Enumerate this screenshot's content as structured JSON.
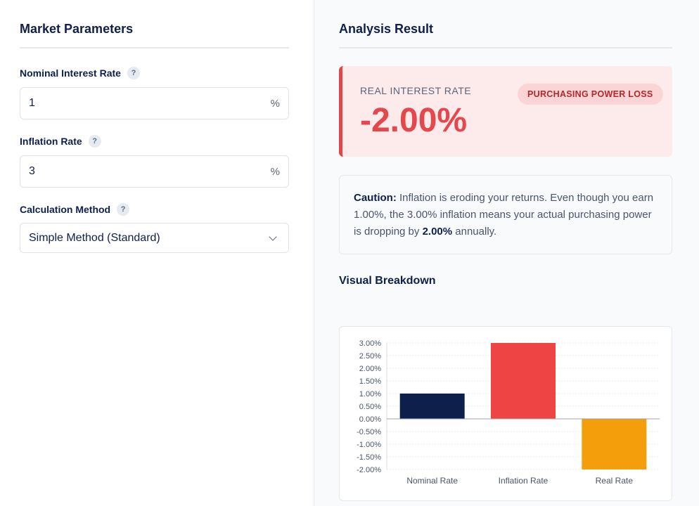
{
  "left": {
    "title": "Market Parameters",
    "nominal": {
      "label": "Nominal Interest Rate",
      "value": "1",
      "unit": "%"
    },
    "inflation": {
      "label": "Inflation Rate",
      "value": "3",
      "unit": "%"
    },
    "method": {
      "label": "Calculation Method",
      "selected": "Simple Method (Standard)"
    },
    "help_glyph": "?"
  },
  "right": {
    "title": "Analysis Result",
    "result": {
      "label": "REAL INTEREST RATE",
      "value": "-2.00%",
      "badge": "PURCHASING POWER LOSS"
    },
    "caution": {
      "lead": "Caution:",
      "text1": " Inflation is eroding your returns. Even though you earn 1.00%, the 3.00% inflation means your actual purchasing power is dropping by ",
      "emph": "2.00%",
      "text2": " annually."
    },
    "breakdown_title": "Visual Breakdown"
  },
  "colors": {
    "navy": "#0f1f4b",
    "red": "#ef4444",
    "amber": "#f59e0b"
  },
  "chart_data": {
    "type": "bar",
    "categories": [
      "Nominal Rate",
      "Inflation Rate",
      "Real Rate"
    ],
    "values": [
      1.0,
      3.0,
      -2.0
    ],
    "colors": [
      "#0f1f4b",
      "#ef4444",
      "#f59e0b"
    ],
    "ylim": [
      -2.0,
      3.0
    ],
    "yticks": [
      3.0,
      2.5,
      2.0,
      1.5,
      1.0,
      0.5,
      0.0,
      -0.5,
      -1.0,
      -1.5,
      -2.0
    ],
    "ytick_labels": [
      "3.00%",
      "2.50%",
      "2.00%",
      "1.50%",
      "1.00%",
      "0.50%",
      "0.00%",
      "-0.50%",
      "-1.00%",
      "-1.50%",
      "-2.00%"
    ],
    "grid": true
  }
}
